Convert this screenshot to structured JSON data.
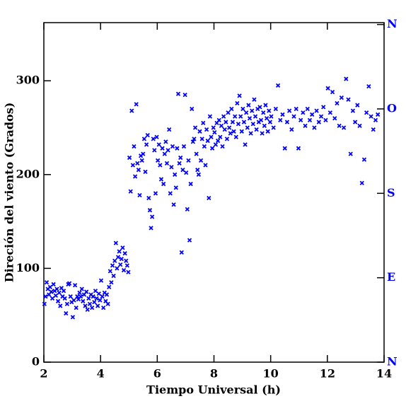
{
  "chart_data": {
    "type": "scatter",
    "x_label": "Tiempo Universal (h)",
    "y_label": "Direción del viento (Grados)",
    "color": "#0000ff",
    "xlim": [
      2,
      14
    ],
    "xticks": [
      2,
      4,
      6,
      8,
      10,
      12,
      14
    ],
    "ylim": [
      0,
      362
    ],
    "yticks": [
      0,
      100,
      200,
      300
    ],
    "y2lim": [
      0,
      362
    ],
    "y2ticks": [
      {
        "value": 0,
        "label": "N"
      },
      {
        "value": 90,
        "label": "E"
      },
      {
        "value": 180,
        "label": "S"
      },
      {
        "value": 270,
        "label": "O"
      },
      {
        "value": 360,
        "label": "N"
      }
    ],
    "x": [
      2.02,
      2.06,
      2.1,
      2.14,
      2.18,
      2.22,
      2.26,
      2.3,
      2.34,
      2.38,
      2.42,
      2.46,
      2.5,
      2.54,
      2.58,
      2.62,
      2.66,
      2.7,
      2.74,
      2.78,
      2.82,
      2.86,
      2.9,
      2.94,
      2.98,
      3.02,
      3.06,
      3.1,
      3.14,
      3.18,
      3.22,
      3.26,
      3.3,
      3.34,
      3.38,
      3.42,
      3.46,
      3.5,
      3.54,
      3.58,
      3.62,
      3.66,
      3.7,
      3.74,
      3.78,
      3.82,
      3.86,
      3.9,
      3.94,
      3.98,
      4.02,
      4.06,
      4.1,
      4.14,
      4.18,
      4.22,
      4.26,
      4.3,
      4.34,
      4.38,
      4.42,
      4.46,
      4.5,
      4.54,
      4.58,
      4.62,
      4.66,
      4.7,
      4.74,
      4.78,
      4.82,
      4.86,
      4.9,
      4.94,
      4.98,
      5.02,
      5.06,
      5.1,
      5.14,
      5.18,
      5.22,
      5.26,
      5.3,
      5.34,
      5.38,
      5.42,
      5.46,
      5.5,
      5.54,
      5.58,
      5.62,
      5.66,
      5.7,
      5.74,
      5.78,
      5.82,
      5.86,
      5.9,
      5.94,
      5.98,
      6.02,
      6.06,
      6.1,
      6.14,
      6.18,
      6.22,
      6.26,
      6.3,
      6.34,
      6.38,
      6.42,
      6.46,
      6.5,
      6.54,
      6.58,
      6.62,
      6.66,
      6.7,
      6.74,
      6.78,
      6.82,
      6.86,
      6.9,
      6.94,
      6.98,
      7.02,
      7.06,
      7.1,
      7.14,
      7.18,
      7.22,
      7.26,
      7.3,
      7.34,
      7.38,
      7.42,
      7.46,
      7.5,
      7.54,
      7.58,
      7.62,
      7.66,
      7.7,
      7.74,
      7.78,
      7.82,
      7.86,
      7.9,
      7.94,
      7.98,
      8.02,
      8.06,
      8.1,
      8.14,
      8.18,
      8.22,
      8.26,
      8.3,
      8.34,
      8.38,
      8.42,
      8.46,
      8.5,
      8.54,
      8.58,
      8.62,
      8.66,
      8.7,
      8.74,
      8.78,
      8.82,
      8.86,
      8.9,
      8.94,
      8.98,
      9.02,
      9.06,
      9.1,
      9.14,
      9.18,
      9.22,
      9.26,
      9.3,
      9.34,
      9.38,
      9.42,
      9.46,
      9.5,
      9.54,
      9.58,
      9.62,
      9.66,
      9.7,
      9.74,
      9.78,
      9.82,
      9.86,
      9.9,
      9.94,
      9.98,
      10.02,
      10.1,
      10.18,
      10.26,
      10.34,
      10.42,
      10.5,
      10.58,
      10.66,
      10.74,
      10.82,
      10.9,
      10.98,
      11.06,
      11.14,
      11.22,
      11.3,
      11.38,
      11.46,
      11.54,
      11.62,
      11.7,
      11.78,
      11.86,
      11.94,
      12.02,
      12.1,
      12.18,
      12.26,
      12.34,
      12.42,
      12.5,
      12.58,
      12.66,
      12.74,
      12.82,
      12.9,
      12.98,
      13.06,
      13.14,
      13.22,
      13.3,
      13.38,
      13.46,
      13.54,
      13.62,
      13.7,
      13.78
    ],
    "values": [
      62,
      70,
      85,
      78,
      72,
      80,
      75,
      68,
      83,
      76,
      71,
      78,
      65,
      74,
      60,
      79,
      70,
      76,
      68,
      52,
      62,
      83,
      84,
      70,
      64,
      48,
      66,
      82,
      58,
      70,
      67,
      74,
      70,
      78,
      65,
      72,
      60,
      75,
      56,
      68,
      62,
      72,
      58,
      70,
      64,
      76,
      68,
      60,
      73,
      66,
      87,
      70,
      58,
      74,
      65,
      72,
      62,
      80,
      97,
      85,
      103,
      92,
      108,
      127,
      100,
      112,
      118,
      104,
      110,
      122,
      98,
      116,
      108,
      103,
      96,
      218,
      182,
      268,
      210,
      230,
      198,
      275,
      212,
      205,
      178,
      220,
      215,
      222,
      238,
      203,
      232,
      242,
      175,
      162,
      143,
      155,
      238,
      226,
      180,
      240,
      215,
      232,
      210,
      195,
      228,
      190,
      222,
      235,
      212,
      226,
      248,
      180,
      208,
      230,
      168,
      200,
      186,
      228,
      286,
      212,
      218,
      117,
      205,
      230,
      285,
      202,
      163,
      215,
      130,
      190,
      270,
      235,
      238,
      250,
      222,
      205,
      200,
      246,
      215,
      238,
      255,
      230,
      210,
      248,
      236,
      175,
      262,
      240,
      228,
      250,
      245,
      232,
      255,
      236,
      258,
      240,
      252,
      230,
      262,
      248,
      256,
      238,
      266,
      250,
      244,
      270,
      256,
      246,
      262,
      240,
      276,
      254,
      284,
      262,
      246,
      270,
      256,
      232,
      266,
      250,
      274,
      260,
      244,
      268,
      254,
      280,
      262,
      248,
      270,
      256,
      272,
      258,
      244,
      266,
      252,
      274,
      260,
      246,
      268,
      256,
      262,
      250,
      270,
      295,
      258,
      264,
      228,
      256,
      268,
      248,
      262,
      270,
      228,
      258,
      266,
      252,
      270,
      258,
      264,
      250,
      268,
      256,
      262,
      272,
      258,
      292,
      266,
      288,
      260,
      276,
      252,
      282,
      250,
      302,
      280,
      222,
      268,
      256,
      274,
      252,
      191,
      216,
      266,
      294,
      262,
      248,
      258,
      264
    ]
  }
}
